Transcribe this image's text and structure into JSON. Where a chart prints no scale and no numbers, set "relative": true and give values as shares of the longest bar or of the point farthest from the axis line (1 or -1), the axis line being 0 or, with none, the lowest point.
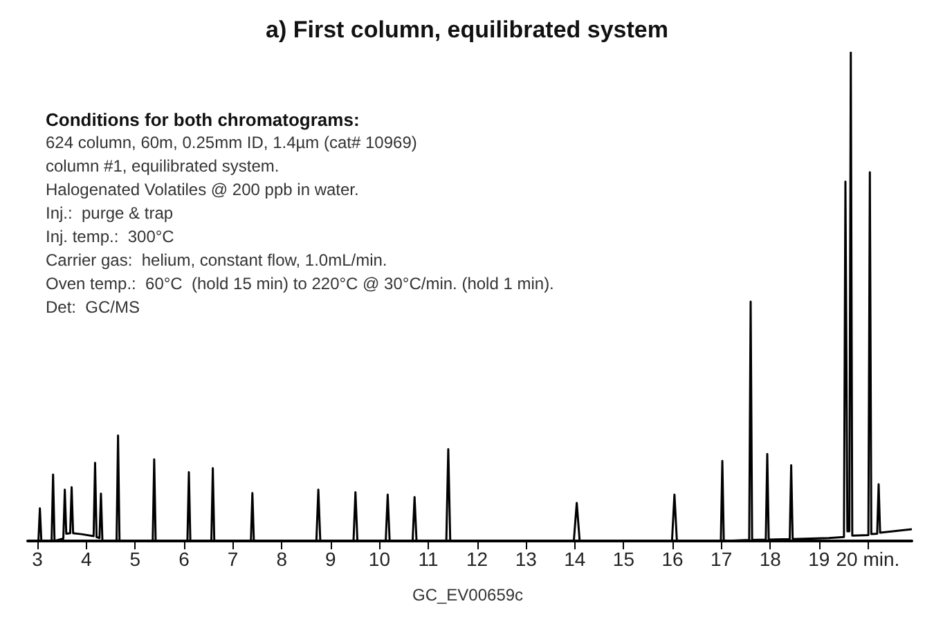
{
  "chart_data": {
    "type": "line",
    "title": "a) First column, equilibrated system",
    "relative": true,
    "marker": "none",
    "color": "#000000",
    "xlim": [
      2.8,
      20.9
    ],
    "xticks": [
      3,
      4,
      5,
      6,
      7,
      8,
      9,
      10,
      11,
      12,
      13,
      14,
      15,
      16,
      17,
      18,
      19,
      {
        "value": 20,
        "label": "20 min."
      }
    ],
    "x": [
      2.8,
      3.02,
      3.05,
      3.08,
      3.29,
      3.32,
      3.35,
      3.53,
      3.56,
      3.59,
      3.67,
      3.7,
      3.73,
      3.9,
      4.15,
      4.18,
      4.21,
      4.27,
      4.3,
      4.33,
      4.62,
      4.65,
      4.68,
      5.36,
      5.39,
      5.42,
      6.07,
      6.1,
      6.13,
      6.56,
      6.59,
      6.62,
      7.37,
      7.4,
      7.43,
      8.71,
      8.75,
      8.79,
      9.47,
      9.51,
      9.55,
      10.13,
      10.17,
      10.21,
      10.68,
      10.72,
      10.76,
      11.37,
      11.41,
      11.45,
      13.98,
      14.04,
      14.1,
      15.99,
      16.04,
      16.09,
      16.99,
      17.02,
      17.05,
      17.57,
      17.6,
      17.63,
      17.91,
      17.94,
      17.97,
      18.4,
      18.43,
      18.46,
      19.2,
      19.51,
      19.54,
      19.58,
      19.62,
      19.65,
      19.68,
      20.01,
      20.04,
      20.07,
      20.19,
      20.22,
      20.25,
      20.9
    ],
    "values": [
      0,
      0,
      0.067,
      0,
      0,
      0.136,
      0,
      0.005,
      0.105,
      0.015,
      0.016,
      0.11,
      0.016,
      0.014,
      0.01,
      0.16,
      0.008,
      0.006,
      0.097,
      0,
      0,
      0.216,
      0,
      0,
      0.167,
      0,
      0,
      0.141,
      0,
      0,
      0.149,
      0,
      0,
      0.098,
      0,
      0,
      0.105,
      0,
      0,
      0.1,
      0,
      0,
      0.095,
      0,
      0,
      0.09,
      0,
      0,
      0.188,
      0,
      0,
      0.078,
      0,
      0,
      0.095,
      0,
      0,
      0.164,
      0,
      0.002,
      0.49,
      0.002,
      0.003,
      0.178,
      0.003,
      0.004,
      0.155,
      0.004,
      0.006,
      0.008,
      0.736,
      0.02,
      0.02,
      1,
      0.011,
      0.012,
      0.755,
      0.014,
      0.015,
      0.116,
      0.017,
      0.024
    ],
    "annotations": [
      "Conditions for both chromatograms:",
      "624 column, 60m, 0.25mm ID, 1.4µm (cat# 10969)",
      "column #1, equilibrated system.",
      "Halogenated Volatiles @ 200 ppb in water.",
      "Inj.:  purge & trap",
      "Inj. temp.:  300°C",
      "Carrier gas:  helium, constant flow, 1.0mL/min.",
      "Oven temp.:  60°C  (hold 15 min) to 220°C @ 30°C/min. (hold 1 min).",
      "Det:  GC/MS",
      "GC_EV00659c"
    ]
  }
}
